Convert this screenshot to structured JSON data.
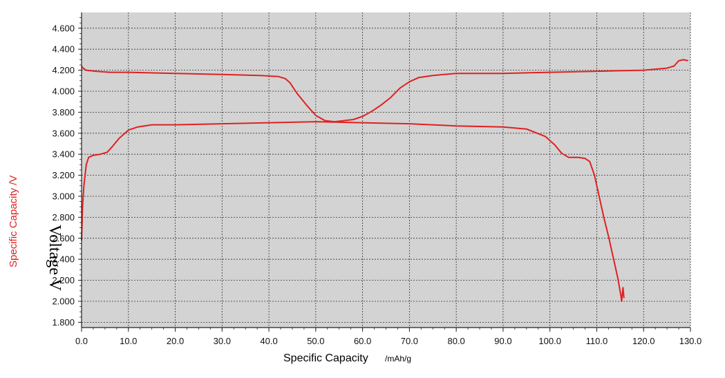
{
  "chart_data": {
    "type": "line",
    "xlabel": "Specific Capacity",
    "xlabel_unit": "/mAh/g",
    "ylabel": "Specific Capacity /V",
    "ylabel_overlay": "Voltage V",
    "xlim": [
      0,
      130
    ],
    "ylim": [
      1.75,
      4.75
    ],
    "x_ticks": [
      "0.0",
      "10.0",
      "20.0",
      "30.0",
      "40.0",
      "50.0",
      "60.0",
      "70.0",
      "80.0",
      "90.0",
      "100.0",
      "110.0",
      "120.0",
      "130.0"
    ],
    "y_ticks": [
      "1.800",
      "2.000",
      "2.200",
      "2.400",
      "2.600",
      "2.800",
      "3.000",
      "3.200",
      "3.400",
      "3.600",
      "3.800",
      "4.000",
      "4.200",
      "4.400",
      "4.600"
    ],
    "grid": true,
    "legend": "none",
    "colors": {
      "background": "#d3d3d3",
      "line": "#e02020",
      "grid": "#333333"
    },
    "series": [
      {
        "values": [
          [
            0,
            4.24
          ],
          [
            0.3,
            4.22
          ],
          [
            1,
            4.2
          ],
          [
            3,
            4.19
          ],
          [
            6,
            4.18
          ],
          [
            10,
            4.18
          ],
          [
            20,
            4.17
          ],
          [
            30,
            4.16
          ],
          [
            38,
            4.15
          ],
          [
            42,
            4.14
          ],
          [
            43.5,
            4.12
          ],
          [
            44.5,
            4.08
          ],
          [
            46,
            3.98
          ],
          [
            48,
            3.87
          ],
          [
            50,
            3.77
          ],
          [
            52,
            3.72
          ],
          [
            54,
            3.71
          ],
          [
            56,
            3.72
          ],
          [
            58,
            3.73
          ],
          [
            60,
            3.76
          ],
          [
            62,
            3.81
          ],
          [
            64,
            3.87
          ],
          [
            66,
            3.94
          ],
          [
            68,
            4.03
          ],
          [
            70,
            4.09
          ],
          [
            72,
            4.13
          ],
          [
            75,
            4.15
          ],
          [
            80,
            4.17
          ],
          [
            90,
            4.17
          ],
          [
            100,
            4.18
          ],
          [
            110,
            4.19
          ],
          [
            120,
            4.2
          ],
          [
            125,
            4.22
          ],
          [
            126.5,
            4.24
          ],
          [
            127.5,
            4.29
          ],
          [
            128.5,
            4.3
          ],
          [
            129.5,
            4.29
          ]
        ]
      },
      {
        "values": [
          [
            0,
            2.58
          ],
          [
            0.1,
            2.72
          ],
          [
            0.2,
            2.9
          ],
          [
            0.5,
            3.1
          ],
          [
            1,
            3.3
          ],
          [
            1.5,
            3.37
          ],
          [
            2.5,
            3.39
          ],
          [
            4,
            3.4
          ],
          [
            5.5,
            3.42
          ],
          [
            6.5,
            3.47
          ],
          [
            8,
            3.55
          ],
          [
            10,
            3.63
          ],
          [
            12,
            3.66
          ],
          [
            15,
            3.68
          ],
          [
            20,
            3.68
          ],
          [
            30,
            3.69
          ],
          [
            40,
            3.7
          ],
          [
            50,
            3.71
          ],
          [
            60,
            3.7
          ],
          [
            70,
            3.69
          ],
          [
            80,
            3.67
          ],
          [
            90,
            3.66
          ],
          [
            95,
            3.64
          ],
          [
            99,
            3.57
          ],
          [
            101,
            3.49
          ],
          [
            102.5,
            3.41
          ],
          [
            104,
            3.37
          ],
          [
            106,
            3.37
          ],
          [
            107.5,
            3.36
          ],
          [
            108.5,
            3.33
          ],
          [
            109.5,
            3.2
          ],
          [
            110.5,
            3.0
          ],
          [
            111.5,
            2.8
          ],
          [
            112.5,
            2.62
          ],
          [
            113.5,
            2.42
          ],
          [
            114.5,
            2.22
          ],
          [
            115.2,
            2.04
          ],
          [
            115.3,
            2.0
          ],
          [
            115.6,
            2.13
          ],
          [
            115.8,
            2.03
          ]
        ]
      }
    ]
  }
}
